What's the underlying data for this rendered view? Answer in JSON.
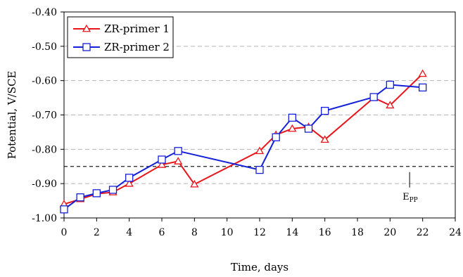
{
  "chart_data": {
    "type": "line",
    "title": "",
    "xlabel": "Time, days",
    "ylabel": "Potential, V/SCE",
    "xlim": [
      0,
      24
    ],
    "ylim": [
      -1.0,
      -0.4
    ],
    "xticks": [
      0,
      2,
      4,
      6,
      8,
      10,
      12,
      14,
      16,
      18,
      20,
      22,
      24
    ],
    "xtick_labels": [
      "0",
      "2",
      "4",
      "6",
      "8",
      "10",
      "12",
      "14",
      "16",
      "18",
      "20",
      "22",
      "24"
    ],
    "yticks": [
      -0.4,
      -0.5,
      -0.6,
      -0.7,
      -0.8,
      -0.9,
      -1.0
    ],
    "ytick_labels": [
      "-0.40",
      "-0.50",
      "-0.60",
      "-0.70",
      "-0.80",
      "-0.90",
      "-1.00"
    ],
    "grid": "horizontal dashed",
    "legend_position": "top-left",
    "series": [
      {
        "name": "ZR-primer 1",
        "color": "#e8151b",
        "marker": "triangle",
        "x": [
          0,
          1,
          2,
          3,
          4,
          6,
          7,
          8,
          12,
          13,
          14,
          15,
          16,
          19,
          20,
          22
        ],
        "y": [
          -0.96,
          -0.945,
          -0.93,
          -0.925,
          -0.9,
          -0.845,
          -0.835,
          -0.902,
          -0.805,
          -0.758,
          -0.74,
          -0.735,
          -0.772,
          -0.65,
          -0.672,
          -0.58
        ]
      },
      {
        "name": "ZR-primer 2",
        "color": "#1420d8",
        "marker": "square",
        "x": [
          0,
          1,
          2,
          3,
          4,
          6,
          7,
          12,
          13,
          14,
          15,
          16,
          19,
          20,
          22
        ],
        "y": [
          -0.975,
          -0.94,
          -0.928,
          -0.918,
          -0.883,
          -0.83,
          -0.805,
          -0.86,
          -0.765,
          -0.708,
          -0.74,
          -0.688,
          -0.648,
          -0.612,
          -0.62
        ]
      }
    ],
    "reference_line": {
      "y": -0.85,
      "style": "dashed",
      "label": "E",
      "label_sub": "PP",
      "label_x": 21.2
    }
  }
}
